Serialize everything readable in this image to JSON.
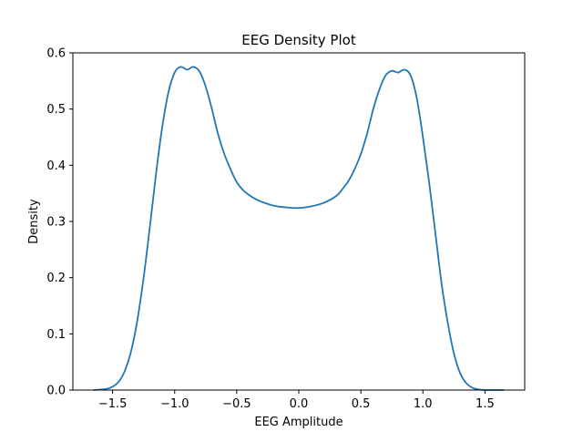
{
  "chart_data": {
    "type": "line",
    "title": "EEG Density Plot",
    "xlabel": "EEG Amplitude",
    "ylabel": "Density",
    "xlim": [
      -1.82,
      1.82
    ],
    "ylim": [
      0.0,
      0.6
    ],
    "xticks": [
      -1.5,
      -1.0,
      -0.5,
      0.0,
      0.5,
      1.0,
      1.5
    ],
    "xtick_labels": [
      "−1.5",
      "−1.0",
      "−0.5",
      "0.0",
      "0.5",
      "1.0",
      "1.5"
    ],
    "yticks": [
      0.0,
      0.1,
      0.2,
      0.3,
      0.4,
      0.5,
      0.6
    ],
    "ytick_labels": [
      "0.0",
      "0.1",
      "0.2",
      "0.3",
      "0.4",
      "0.5",
      "0.6"
    ],
    "grid": false,
    "series": [
      {
        "color": "#1f77b4",
        "x": [
          -1.65,
          -1.55,
          -1.5,
          -1.45,
          -1.4,
          -1.35,
          -1.3,
          -1.25,
          -1.2,
          -1.15,
          -1.1,
          -1.05,
          -1.0,
          -0.95,
          -0.9,
          -0.85,
          -0.8,
          -0.75,
          -0.7,
          -0.65,
          -0.6,
          -0.55,
          -0.5,
          -0.45,
          -0.4,
          -0.35,
          -0.3,
          -0.2,
          -0.1,
          0.0,
          0.1,
          0.2,
          0.3,
          0.35,
          0.4,
          0.45,
          0.5,
          0.55,
          0.6,
          0.65,
          0.7,
          0.75,
          0.8,
          0.85,
          0.9,
          0.95,
          1.0,
          1.05,
          1.1,
          1.15,
          1.2,
          1.25,
          1.3,
          1.35,
          1.4,
          1.45,
          1.5,
          1.55,
          1.65
        ],
        "y": [
          0.0,
          0.002,
          0.006,
          0.015,
          0.035,
          0.07,
          0.125,
          0.2,
          0.29,
          0.385,
          0.468,
          0.53,
          0.565,
          0.575,
          0.57,
          0.575,
          0.567,
          0.54,
          0.5,
          0.455,
          0.42,
          0.393,
          0.37,
          0.356,
          0.347,
          0.34,
          0.335,
          0.328,
          0.325,
          0.324,
          0.327,
          0.333,
          0.345,
          0.357,
          0.372,
          0.393,
          0.42,
          0.456,
          0.5,
          0.535,
          0.56,
          0.568,
          0.565,
          0.57,
          0.56,
          0.52,
          0.45,
          0.37,
          0.28,
          0.19,
          0.12,
          0.065,
          0.03,
          0.012,
          0.004,
          0.001,
          0.0,
          0.0,
          0.0
        ]
      }
    ]
  }
}
